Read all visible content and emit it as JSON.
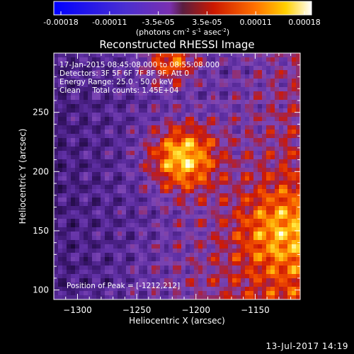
{
  "chart_data": {
    "type": "heatmap",
    "title": "Reconstructed RHESSI Image",
    "xlabel": "Heliocentric X (arcsec)",
    "ylabel": "Heliocentric Y (arcsec)",
    "xlim": [
      -1320,
      -1112
    ],
    "ylim": [
      92,
      300
    ],
    "x_ticks": [
      -1300,
      -1250,
      -1200,
      -1150
    ],
    "y_ticks": [
      100,
      150,
      200,
      250
    ],
    "colorbar": {
      "ticks": [
        "-0.00018",
        "-0.00011",
        "-3.5e-05",
        "3.5e-05",
        "0.00011",
        "0.00018"
      ],
      "unit_main": "(photons cm",
      "unit_exp1": "-2",
      "unit_mid": " s",
      "unit_exp2": "-1",
      "unit_end": " asec",
      "unit_exp3": "-2",
      "unit_close": ")",
      "range": [
        -0.00018,
        0.00018
      ]
    },
    "annotations": [
      "17-Jan-2015 08:45:08.000 to 08:55:08.000",
      "Detectors: 3F 5F 6F 7F 8F 9F, Att 0",
      "Energy Range: 25.0 - 50.0 keV",
      "Clean     Total counts: 1.45E+04"
    ],
    "peak_label": "Position of Peak = [-1212,212]",
    "peak": [
      -1212,
      212
    ]
  },
  "footer": {
    "timestamp": "13-Jul-2017 14:19"
  }
}
